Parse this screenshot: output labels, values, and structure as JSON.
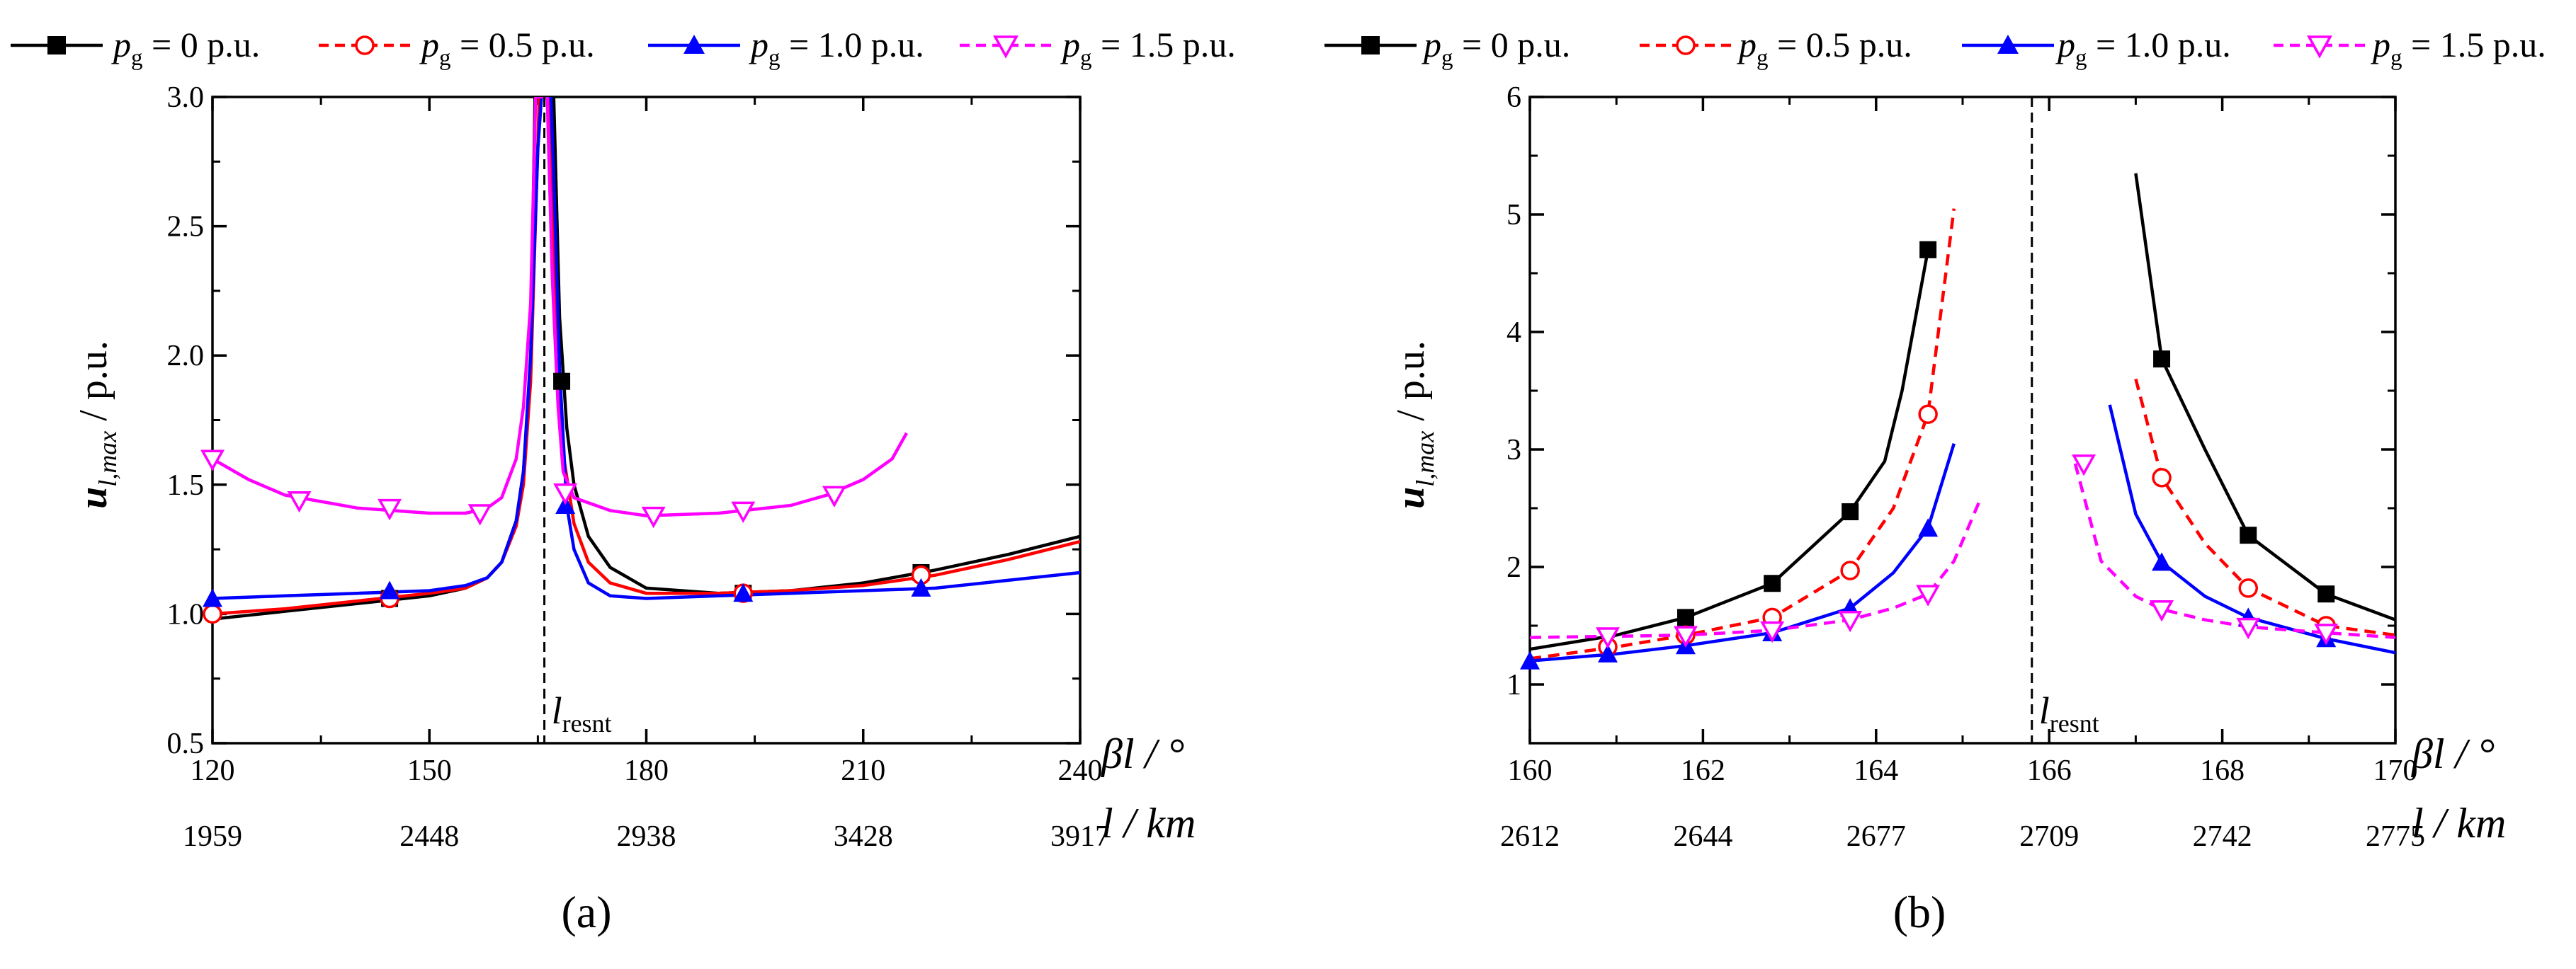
{
  "colors": {
    "black": "#000000",
    "red": "#ff0000",
    "blue": "#0000ff",
    "magenta": "#ff00ff"
  },
  "legend": {
    "items": [
      {
        "p": "p",
        "sub": "g",
        "rest": " = 0 p.u."
      },
      {
        "p": "p",
        "sub": "g",
        "rest": " = 0.5 p.u."
      },
      {
        "p": "p",
        "sub": "g",
        "rest": " = 1.0 p.u."
      },
      {
        "p": "p",
        "sub": "g",
        "rest": " = 1.5 p.u."
      }
    ]
  },
  "labels": {
    "ylabel_main": "u",
    "ylabel_sub": "l,max",
    "ylabel_unit": " / p.u.",
    "beta_l": "βl / °",
    "l_km": "l / km",
    "l_resnt_main": "l",
    "l_resnt_sub": "resnt"
  },
  "chart_data": [
    {
      "type": "line",
      "caption": "(a)",
      "xlim": [
        120,
        240
      ],
      "ylim": [
        0.5,
        3.0
      ],
      "x_ticks": [
        "120",
        "150",
        "180",
        "210",
        "240"
      ],
      "x_ticks_km": [
        "1959",
        "2448",
        "2938",
        "3428",
        "3917"
      ],
      "y_ticks": [
        "0.5",
        "1.0",
        "1.5",
        "2.0",
        "2.5",
        "3.0"
      ],
      "resonance_x": 165.9,
      "series": [
        {
          "name": "pg = 0 p.u.",
          "color": "black",
          "dash": "solid",
          "marker": "square",
          "x": [
            120,
            130,
            140,
            150,
            155,
            158,
            160,
            162,
            163,
            164,
            164.6,
            167.2,
            168,
            169,
            170,
            172,
            175,
            180,
            190,
            200,
            210,
            220,
            230,
            240
          ],
          "y": [
            0.98,
            1.01,
            1.04,
            1.07,
            1.1,
            1.14,
            1.2,
            1.36,
            1.55,
            1.95,
            3.0,
            3.0,
            2.15,
            1.72,
            1.5,
            1.3,
            1.18,
            1.1,
            1.08,
            1.09,
            1.12,
            1.17,
            1.23,
            1.3
          ],
          "marker_points": [
            [
              144.5,
              1.06
            ],
            [
              193.4,
              1.08
            ],
            [
              218,
              1.16
            ],
            [
              168.3,
              1.9
            ]
          ]
        },
        {
          "name": "pg = 0.5 p.u.",
          "color": "red",
          "dash": "solid",
          "marker": "circle-open",
          "x": [
            120,
            130,
            140,
            150,
            155,
            158,
            160,
            162,
            163,
            164,
            165.2,
            166.6,
            167.5,
            168.5,
            170,
            172,
            175,
            180,
            190,
            200,
            210,
            220,
            230,
            240
          ],
          "y": [
            1.0,
            1.02,
            1.05,
            1.08,
            1.1,
            1.14,
            1.2,
            1.34,
            1.5,
            1.9,
            3.0,
            3.0,
            2.0,
            1.62,
            1.35,
            1.2,
            1.12,
            1.08,
            1.08,
            1.09,
            1.11,
            1.15,
            1.21,
            1.28
          ],
          "marker_points": [
            [
              120,
              1.0
            ],
            [
              144.5,
              1.06
            ],
            [
              193.4,
              1.08
            ],
            [
              218,
              1.15
            ]
          ]
        },
        {
          "name": "pg = 1.0 p.u.",
          "color": "blue",
          "dash": "solid",
          "marker": "triangle-up",
          "x": [
            120,
            130,
            140,
            150,
            155,
            158,
            160,
            162,
            163,
            164,
            165,
            165.5,
            166.8,
            167.3,
            168,
            169,
            170,
            172,
            175,
            180,
            190,
            200,
            210,
            220,
            230,
            240
          ],
          "y": [
            1.06,
            1.07,
            1.08,
            1.09,
            1.11,
            1.14,
            1.2,
            1.36,
            1.55,
            2.0,
            2.8,
            3.0,
            3.0,
            2.6,
            1.95,
            1.42,
            1.25,
            1.12,
            1.07,
            1.06,
            1.07,
            1.08,
            1.09,
            1.1,
            1.13,
            1.16
          ],
          "marker_points": [
            [
              120,
              1.06
            ],
            [
              144.5,
              1.09
            ],
            [
              168.8,
              1.42
            ],
            [
              193.4,
              1.08
            ],
            [
              218,
              1.1
            ]
          ]
        },
        {
          "name": "pg = 1.5 p.u.",
          "color": "magenta",
          "dash": "solid",
          "marker": "triangle-down-open",
          "x": [
            120,
            125,
            130,
            140,
            150,
            155,
            158,
            160,
            162,
            163,
            164,
            164.7,
            166.3,
            167,
            167.8,
            168.5,
            170,
            175,
            180,
            190,
            200,
            205,
            210,
            214,
            216
          ],
          "y": [
            1.6,
            1.52,
            1.46,
            1.41,
            1.39,
            1.39,
            1.41,
            1.45,
            1.6,
            1.8,
            2.2,
            3.0,
            3.0,
            2.3,
            1.8,
            1.55,
            1.45,
            1.4,
            1.38,
            1.39,
            1.42,
            1.46,
            1.52,
            1.6,
            1.7
          ],
          "marker_points": [
            [
              120,
              1.6
            ],
            [
              132,
              1.44
            ],
            [
              144.5,
              1.41
            ],
            [
              157,
              1.39
            ],
            [
              168.8,
              1.47
            ],
            [
              181,
              1.38
            ],
            [
              193.4,
              1.4
            ],
            [
              206,
              1.46
            ]
          ]
        }
      ]
    },
    {
      "type": "line",
      "caption": "(b)",
      "xlim": [
        160,
        170
      ],
      "ylim": [
        0.5,
        6
      ],
      "x_ticks": [
        "160",
        "162",
        "164",
        "166",
        "168",
        "170"
      ],
      "x_ticks_km": [
        "2612",
        "2644",
        "2677",
        "2709",
        "2742",
        "2775"
      ],
      "y_ticks": [
        "1",
        "2",
        "3",
        "4",
        "5",
        "6"
      ],
      "resonance_x": 165.8,
      "series": [
        {
          "name": "pg = 0 p.u.",
          "color": "black",
          "dash": "solid",
          "marker": "square",
          "segments": [
            {
              "x": [
                160,
                161,
                161.8,
                162.8,
                163.7,
                164.1,
                164.3,
                164.6
              ],
              "y": [
                1.3,
                1.42,
                1.57,
                1.86,
                2.47,
                2.9,
                3.5,
                4.7
              ]
            },
            {
              "x": [
                167,
                167.3,
                167.8,
                168.3,
                169.2,
                170
              ],
              "y": [
                5.35,
                3.77,
                3.0,
                2.27,
                1.77,
                1.55
              ]
            }
          ],
          "marker_points": [
            [
              161.8,
              1.57
            ],
            [
              162.8,
              1.86
            ],
            [
              163.7,
              2.47
            ],
            [
              164.6,
              4.7
            ],
            [
              167.3,
              3.77
            ],
            [
              168.3,
              2.27
            ],
            [
              169.2,
              1.77
            ]
          ]
        },
        {
          "name": "pg = 0.5 p.u.",
          "color": "red",
          "dash": "dashed",
          "marker": "circle-open",
          "segments": [
            {
              "x": [
                160,
                161,
                161.8,
                162.8,
                163.7,
                164.2,
                164.6,
                164.9
              ],
              "y": [
                1.22,
                1.32,
                1.42,
                1.57,
                1.97,
                2.5,
                3.3,
                5.05
              ]
            },
            {
              "x": [
                167,
                167.3,
                167.8,
                168.3,
                169.2,
                170
              ],
              "y": [
                3.6,
                2.76,
                2.2,
                1.82,
                1.5,
                1.42
              ]
            }
          ],
          "marker_points": [
            [
              160.9,
              1.32
            ],
            [
              161.8,
              1.42
            ],
            [
              162.8,
              1.57
            ],
            [
              163.7,
              1.97
            ],
            [
              164.6,
              3.3
            ],
            [
              167.3,
              2.76
            ],
            [
              168.3,
              1.82
            ],
            [
              169.2,
              1.5
            ]
          ]
        },
        {
          "name": "pg = 1.0 p.u.",
          "color": "blue",
          "dash": "solid",
          "marker": "triangle-up",
          "segments": [
            {
              "x": [
                160,
                161,
                161.8,
                162.8,
                163.7,
                164.2,
                164.6,
                164.9
              ],
              "y": [
                1.2,
                1.26,
                1.33,
                1.44,
                1.65,
                1.95,
                2.33,
                3.05
              ]
            },
            {
              "x": [
                166.7,
                167,
                167.3,
                167.8,
                168.3,
                169.2,
                170
              ],
              "y": [
                3.38,
                2.45,
                2.04,
                1.75,
                1.57,
                1.39,
                1.27
              ]
            }
          ],
          "marker_points": [
            [
              160,
              1.2
            ],
            [
              160.9,
              1.26
            ],
            [
              161.8,
              1.33
            ],
            [
              162.8,
              1.44
            ],
            [
              163.7,
              1.65
            ],
            [
              164.6,
              2.33
            ],
            [
              167.3,
              2.04
            ],
            [
              168.3,
              1.57
            ],
            [
              169.2,
              1.39
            ]
          ]
        },
        {
          "name": "pg = 1.5 p.u.",
          "color": "magenta",
          "dash": "dashed",
          "marker": "triangle-down-open",
          "segments": [
            {
              "x": [
                160,
                161,
                161.8,
                162.8,
                163.7,
                164.2,
                164.6,
                164.9,
                165.2
              ],
              "y": [
                1.4,
                1.41,
                1.42,
                1.46,
                1.55,
                1.65,
                1.77,
                2.05,
                2.57
              ]
            },
            {
              "x": [
                166.3,
                166.6,
                167,
                167.3,
                167.8,
                168.3,
                169.2,
                170
              ],
              "y": [
                2.88,
                2.05,
                1.75,
                1.64,
                1.55,
                1.49,
                1.44,
                1.4
              ]
            }
          ],
          "marker_points": [
            [
              160.9,
              1.41
            ],
            [
              161.8,
              1.42
            ],
            [
              162.8,
              1.46
            ],
            [
              163.7,
              1.55
            ],
            [
              164.6,
              1.77
            ],
            [
              166.4,
              2.88
            ],
            [
              167.3,
              1.64
            ],
            [
              168.3,
              1.49
            ],
            [
              169.2,
              1.44
            ]
          ]
        }
      ]
    }
  ]
}
